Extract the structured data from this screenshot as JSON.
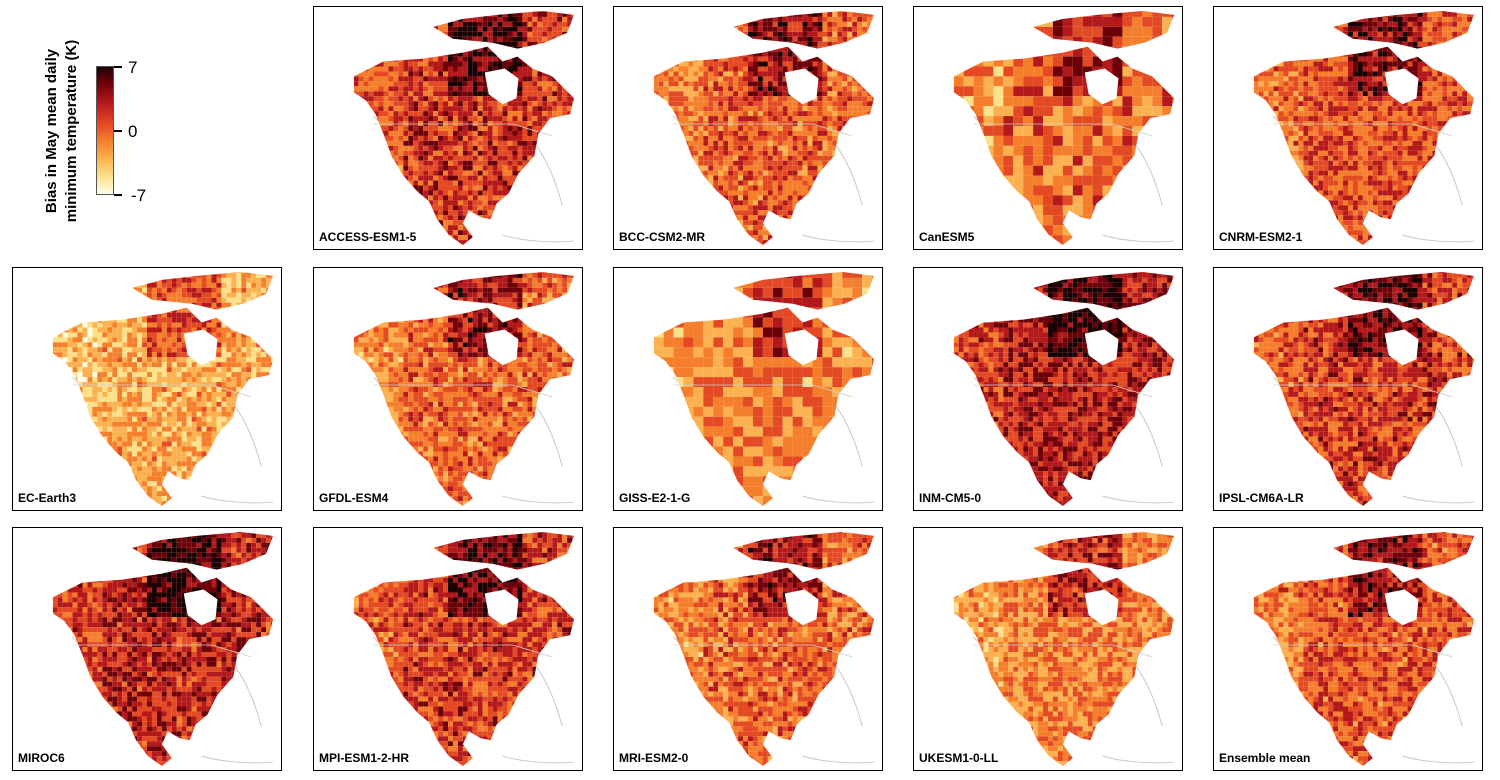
{
  "legend": {
    "title": "Bias in May mean daily minimum temperature (K)",
    "ticks": [
      "7",
      "0",
      "-7"
    ],
    "range": [
      -7,
      7
    ]
  },
  "colors": {
    "very_low": "#fffde8",
    "low": "#fde089",
    "mid_low": "#fbb14f",
    "mid": "#f57e2c",
    "mid_high": "#e34a23",
    "high": "#b3191b",
    "very_high": "#6b0008",
    "extreme": "#1a0000",
    "coastline": "#c8c8c8"
  },
  "panels": [
    {
      "label": "ACCESS-ESM1-5",
      "tone": 0.62
    },
    {
      "label": "BCC-CSM2-MR",
      "tone": 0.52
    },
    {
      "label": "CanESM5",
      "tone": 0.48
    },
    {
      "label": "CNRM-ESM2-1",
      "tone": 0.55
    },
    {
      "label": "EC-Earth3",
      "tone": 0.34
    },
    {
      "label": "GFDL-ESM4",
      "tone": 0.5
    },
    {
      "label": "GISS-E2-1-G",
      "tone": 0.42
    },
    {
      "label": "INM-CM5-0",
      "tone": 0.68
    },
    {
      "label": "IPSL-CM6A-LR",
      "tone": 0.6
    },
    {
      "label": "MIROC6",
      "tone": 0.66
    },
    {
      "label": "MPI-ESM1-2-HR",
      "tone": 0.6
    },
    {
      "label": "MRI-ESM2-0",
      "tone": 0.5
    },
    {
      "label": "UKESM1-0-LL",
      "tone": 0.44
    },
    {
      "label": "Ensemble mean",
      "tone": 0.54
    }
  ]
}
